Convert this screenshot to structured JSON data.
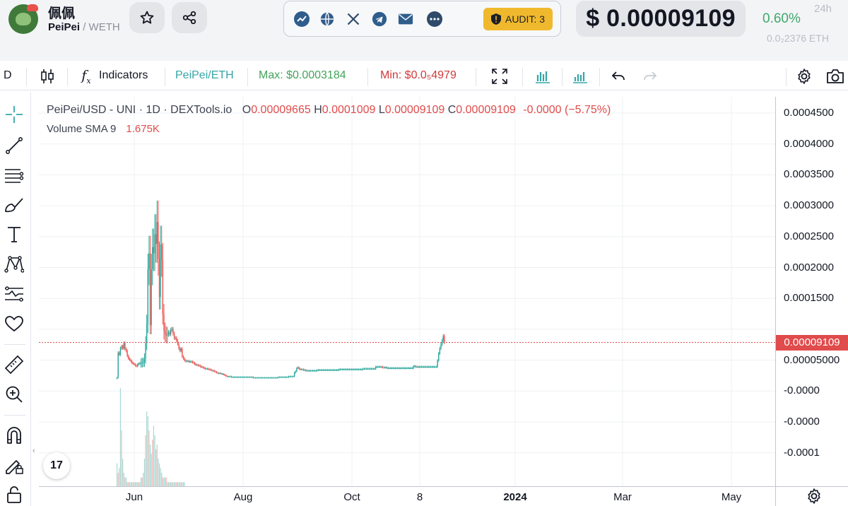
{
  "header": {
    "token_name": "佩佩",
    "pair_base": "PeiPei",
    "pair_quote": " / WETH",
    "audit_label": "AUDIT: 3",
    "price": "$ 0.00009109",
    "change": "0.60%",
    "period": "24h",
    "eth_price": "0.0₂2376 ETH",
    "links": [
      "dextools-icon",
      "globe-icon",
      "x-icon",
      "telegram-icon",
      "mail-icon",
      "more-icon"
    ]
  },
  "toolbar": {
    "interval": "D",
    "indicators_label": "Indicators",
    "pair_label": "PeiPei/ETH",
    "max_label": "Max: $0.0003184",
    "min_label": "Min: $0.0₅4979"
  },
  "legend": {
    "title": "PeiPei/USD - UNI · 1D · DEXTools.io",
    "o_key": "O",
    "o_val": "0.00009665",
    "h_key": "H",
    "h_val": "0.0001009",
    "l_key": "L",
    "l_val": "0.00009109",
    "c_key": "C",
    "c_val": "0.00009109",
    "change": "-0.0000 (−5.75%)",
    "volume_label": "Volume SMA 9",
    "volume_val": "1.675K"
  },
  "tv_logo": "17",
  "colors": {
    "up": "#26a69a",
    "down": "#ef5350",
    "price_line": "#e04b4b",
    "grid": "#eef0f3"
  },
  "chart_data": {
    "type": "candlestick",
    "title": "PeiPei/USD - UNI · 1D · DEXTools.io",
    "y_ticks": [
      "0.0004500",
      "0.0004000",
      "0.0003500",
      "0.0003000",
      "0.0002500",
      "0.0002000",
      "0.0001500",
      "0.00009109",
      "0.00005000",
      "-0.0000",
      "-0.0000",
      "-0.0001"
    ],
    "x_ticks": [
      {
        "label": "Jun",
        "day": 9
      },
      {
        "label": "Aug",
        "day": 70
      },
      {
        "label": "Oct",
        "day": 131
      },
      {
        "label": "8",
        "day": 170
      },
      {
        "label": "2024",
        "day": 223,
        "bold": true
      },
      {
        "label": "Mar",
        "day": 284
      },
      {
        "label": "May",
        "day": 345
      }
    ],
    "last_price": 9.109e-05,
    "ylim": [
      -0.00013,
      0.00047
    ],
    "grid": true,
    "series": [
      {
        "start_day": -3,
        "values": [
          3.6e-05,
          7.5e-05,
          7.2e-05,
          8.2e-05,
          8.5e-05,
          8.2e-05,
          9e-05,
          8.1e-05,
          7.8e-05,
          7e-05,
          6.6e-05,
          6.4e-05,
          6.2e-05,
          5.9e-05,
          5.8e-05,
          5.7e-05,
          5.5e-05,
          5.4e-05,
          5.7e-05,
          5.8e-05,
          5.9e-05,
          5.9e-05,
          6e-05,
          6e-05,
          6.6e-05,
          9e-05,
          0.00012,
          0.000205,
          0.00023,
          0.000118,
          0.000205,
          0.00024,
          0.00023,
          0.00026,
          0.000245,
          0.000279,
          0.000222,
          0.000162,
          0.000244,
          0.00022,
          0.000135,
          0.000109,
          0.000104,
          0.000102,
          0.000103,
          0.000107,
          0.000104,
          0.000111,
          0.000112,
          0.000105,
          9.8e-05,
          9.8e-05,
          9.4e-05,
          8.9e-05,
          8.2e-05,
          7.8e-05,
          8.1e-05,
          6.9e-05,
          6.6e-05,
          6.3e-05,
          6.2e-05,
          6.2e-05,
          6.2e-05,
          6.1e-05,
          6.1e-05,
          6.1e-05,
          6e-05,
          5.9e-05,
          5.7e-05,
          5.6e-05,
          5.6e-05,
          5.5e-05,
          5.5e-05,
          5.3e-05,
          5.3e-05,
          5.2e-05,
          5.1e-05,
          5e-05,
          5e-05,
          5e-05,
          4.9e-05,
          4.9e-05,
          4.8e-05,
          4.7e-05,
          4.7e-05,
          4.6e-05,
          4.5e-05,
          4.4e-05,
          4.3e-05,
          4.3e-05,
          4.3e-05,
          4.2e-05,
          4.2e-05,
          4.1e-05,
          4e-05,
          3.9e-05,
          3.8e-05,
          3.8e-05,
          3.8e-05,
          3.8e-05,
          3.7e-05,
          3.7e-05,
          3.7e-05,
          3.7e-05,
          3.7e-05,
          3.7e-05,
          3.7e-05,
          3.7e-05,
          3.7e-05,
          3.7e-05,
          3.7e-05,
          3.7e-05,
          3.7e-05,
          3.7e-05,
          3.7e-05,
          3.7e-05,
          3.7e-05,
          3.7e-05,
          3.7e-05,
          3.6e-05,
          3.6e-05,
          3.6e-05,
          3.6e-05,
          3.6e-05,
          3.6e-05,
          3.6e-05,
          3.6e-05,
          3.6e-05,
          3.6e-05,
          3.6e-05,
          3.6e-05,
          3.6e-05,
          3.6e-05,
          3.6e-05,
          3.6e-05,
          3.6e-05,
          3.6e-05,
          3.6e-05,
          3.6e-05,
          3.6e-05,
          3.6e-05,
          3.7e-05,
          3.7e-05,
          3.7e-05,
          3.7e-05,
          3.7e-05,
          3.7e-05,
          3.7e-05,
          3.7e-05,
          3.7e-05,
          3.8e-05,
          3.8e-05,
          3.8e-05,
          3.8e-05,
          3.8e-05,
          4.4e-05,
          4.6e-05,
          5.1e-05,
          5.2e-05,
          5e-05,
          4.9e-05,
          4.9e-05,
          4.9e-05,
          4.8e-05,
          4.8e-05,
          4.7e-05,
          4.7e-05,
          4.7e-05,
          4.7e-05,
          4.7e-05,
          4.7e-05,
          4.7e-05,
          4.7e-05,
          4.7e-05,
          4.7e-05,
          4.8e-05,
          4.8e-05,
          4.8e-05,
          4.8e-05,
          4.8e-05,
          4.8e-05,
          4.8e-05,
          4.8e-05,
          4.8e-05,
          4.8e-05,
          4.8e-05,
          4.8e-05,
          4.8e-05,
          4.8e-05,
          4.8e-05,
          4.8e-05,
          4.8e-05,
          4.8e-05,
          4.8e-05,
          4.9e-05,
          4.9e-05,
          4.9e-05,
          4.9e-05,
          4.9e-05,
          4.9e-05,
          4.9e-05,
          4.9e-05,
          4.9e-05,
          4.9e-05,
          4.9e-05,
          4.9e-05,
          4.9e-05,
          4.9e-05,
          4.9e-05,
          4.9e-05,
          4.9e-05,
          4.9e-05,
          4.9e-05,
          4.9e-05,
          4.9e-05,
          5e-05,
          5e-05,
          5e-05,
          5e-05,
          5e-05,
          5e-05,
          5e-05,
          5e-05,
          5e-05,
          5e-05,
          5e-05,
          5.3e-05,
          5.3e-05,
          5.3e-05,
          5.3e-05,
          5.3e-05,
          5.3e-05,
          5.2e-05,
          5.2e-05,
          5.2e-05,
          5.2e-05,
          5.1e-05,
          5.1e-05,
          5.1e-05,
          5.1e-05,
          5.1e-05,
          5.1e-05,
          5.1e-05,
          5.1e-05,
          5.1e-05,
          5.1e-05,
          5.1e-05,
          5.1e-05,
          5.1e-05,
          5.1e-05,
          5.1e-05,
          5.1e-05,
          5.1e-05,
          5.1e-05,
          5.1e-05,
          5.1e-05,
          5.1e-05,
          5.1e-05,
          5.1e-05,
          5.4e-05,
          5.4e-05,
          5.3e-05,
          5.3e-05,
          5.3e-05,
          5.3e-05,
          5.3e-05,
          5.3e-05,
          5.3e-05,
          5.3e-05,
          5.3e-05,
          5.3e-05,
          5.3e-05,
          5.3e-05,
          5.3e-05,
          5.3e-05,
          5.3e-05,
          5.3e-05,
          5.3e-05,
          5.3e-05,
          5.3e-05,
          6.3e-05,
          7.4e-05,
          8.2e-05,
          8.8e-05,
          9.4e-05,
          0.0001009,
          9.109e-05
        ]
      },
      {
        "name": "Volume",
        "start_day": -3,
        "values": [
          0.5,
          0.3,
          0.4,
          2.1,
          1.2,
          0.6,
          0.3,
          0.2,
          0.2,
          0.1,
          0.1,
          0.1,
          0.1,
          0.1,
          0.1,
          0.1,
          0.1,
          0.1,
          0.1,
          0.1,
          0.1,
          0.2,
          0.2,
          0.3,
          0.6,
          1.1,
          1.6,
          1.5,
          1.2,
          0.9,
          0.7,
          1.0,
          1.3,
          1.1,
          0.8,
          0.9,
          0.6,
          0.5,
          0.4,
          0.3,
          0.2,
          0.2,
          0.2,
          0.2,
          0.1,
          0.1,
          0.1,
          0.1,
          0.1,
          0.1,
          0.1,
          0.1,
          0.1,
          0.1,
          0.1,
          0.1,
          0.1,
          0.1,
          0.1,
          0.1
        ]
      }
    ]
  }
}
